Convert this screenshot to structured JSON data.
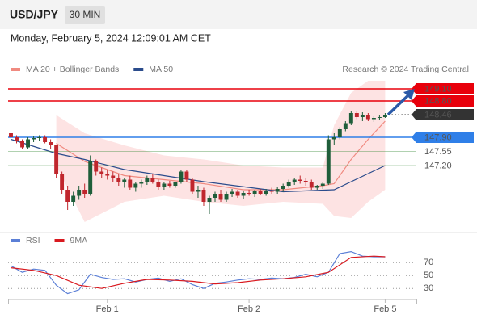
{
  "chart_data": [
    {
      "type": "candlestick",
      "title": "USD/JPY",
      "timeframe": "30 MIN",
      "subtitle": "Monday, February 5, 2024 12:09:01 AM CET",
      "source": "Research © 2024 Trading Central",
      "up_color": "#1f5e3a",
      "down_color": "#c0262d",
      "xlim": [
        -0.5,
        71.5
      ],
      "ylim": [
        145.6,
        149.5
      ],
      "xticks": [
        {
          "value": 17,
          "label": "Feb 1"
        },
        {
          "value": 42,
          "label": "Feb 2"
        },
        {
          "value": 66,
          "label": "Feb 5"
        }
      ],
      "ohlc": [
        [
          148.0,
          148.05,
          147.85,
          147.9
        ],
        [
          147.9,
          147.95,
          147.75,
          147.8
        ],
        [
          147.8,
          147.85,
          147.6,
          147.65
        ],
        [
          147.65,
          147.9,
          147.6,
          147.85
        ],
        [
          147.85,
          147.92,
          147.78,
          147.88
        ],
        [
          147.88,
          147.95,
          147.8,
          147.9
        ],
        [
          147.9,
          147.95,
          147.75,
          147.78
        ],
        [
          147.78,
          147.85,
          147.6,
          147.7
        ],
        [
          147.7,
          147.72,
          146.9,
          147.0
        ],
        [
          147.0,
          147.05,
          146.5,
          146.6
        ],
        [
          146.6,
          146.7,
          146.1,
          146.3
        ],
        [
          146.3,
          146.55,
          146.2,
          146.45
        ],
        [
          146.45,
          146.7,
          146.35,
          146.6
        ],
        [
          146.6,
          146.75,
          146.4,
          146.5
        ],
        [
          146.5,
          147.45,
          146.45,
          147.3
        ],
        [
          147.3,
          147.35,
          146.95,
          147.05
        ],
        [
          147.05,
          147.15,
          146.9,
          147.0
        ],
        [
          147.0,
          147.1,
          146.85,
          146.95
        ],
        [
          146.95,
          147.05,
          146.8,
          146.9
        ],
        [
          146.9,
          147.0,
          146.7,
          146.78
        ],
        [
          146.78,
          146.9,
          146.65,
          146.85
        ],
        [
          146.85,
          146.95,
          146.6,
          146.65
        ],
        [
          146.65,
          146.8,
          146.55,
          146.75
        ],
        [
          146.75,
          146.85,
          146.65,
          146.8
        ],
        [
          146.8,
          146.95,
          146.72,
          146.9
        ],
        [
          146.9,
          147.0,
          146.75,
          146.8
        ],
        [
          146.8,
          146.85,
          146.6,
          146.68
        ],
        [
          146.68,
          146.8,
          146.6,
          146.75
        ],
        [
          146.75,
          146.82,
          146.65,
          146.7
        ],
        [
          146.7,
          146.8,
          146.65,
          146.78
        ],
        [
          146.78,
          147.1,
          146.75,
          147.05
        ],
        [
          147.05,
          147.1,
          146.8,
          146.85
        ],
        [
          146.85,
          146.9,
          146.5,
          146.55
        ],
        [
          146.55,
          146.7,
          146.4,
          146.6
        ],
        [
          146.6,
          146.65,
          146.2,
          146.3
        ],
        [
          146.3,
          146.45,
          146.0,
          146.4
        ],
        [
          146.4,
          146.55,
          146.3,
          146.5
        ],
        [
          146.5,
          146.6,
          146.3,
          146.35
        ],
        [
          146.35,
          146.55,
          146.3,
          146.5
        ],
        [
          146.5,
          146.62,
          146.42,
          146.55
        ],
        [
          146.55,
          146.6,
          146.4,
          146.45
        ],
        [
          146.45,
          146.58,
          146.38,
          146.52
        ],
        [
          146.52,
          146.6,
          146.45,
          146.5
        ],
        [
          146.5,
          146.6,
          146.42,
          146.56
        ],
        [
          146.56,
          146.62,
          146.48,
          146.5
        ],
        [
          146.5,
          146.62,
          146.45,
          146.58
        ],
        [
          146.58,
          146.65,
          146.5,
          146.55
        ],
        [
          146.55,
          146.68,
          146.5,
          146.62
        ],
        [
          146.62,
          146.75,
          146.55,
          146.7
        ],
        [
          146.7,
          146.85,
          146.65,
          146.8
        ],
        [
          146.8,
          146.9,
          146.72,
          146.85
        ],
        [
          146.85,
          146.95,
          146.75,
          146.82
        ],
        [
          146.82,
          146.9,
          146.7,
          146.78
        ],
        [
          146.78,
          146.85,
          146.6,
          146.65
        ],
        [
          146.65,
          146.72,
          146.6,
          146.7
        ],
        [
          146.7,
          146.8,
          146.62,
          146.75
        ],
        [
          146.75,
          147.95,
          146.72,
          147.85
        ],
        [
          147.85,
          148.0,
          147.7,
          147.9
        ],
        [
          147.9,
          148.15,
          147.85,
          148.1
        ],
        [
          148.1,
          148.3,
          148.05,
          148.25
        ],
        [
          148.25,
          148.55,
          148.2,
          148.5
        ],
        [
          148.5,
          148.55,
          148.35,
          148.4
        ],
        [
          148.4,
          148.52,
          148.3,
          148.45
        ],
        [
          148.45,
          148.5,
          148.3,
          148.35
        ],
        [
          148.35,
          148.42,
          148.28,
          148.38
        ],
        [
          148.38,
          148.45,
          148.32,
          148.4
        ],
        [
          148.4,
          148.5,
          148.38,
          148.46
        ]
      ],
      "series": [
        {
          "name": "MA 20 + Bollinger Bands",
          "color": "#f08a80",
          "band_color": "#fde3e3",
          "x": [
            8,
            13,
            20,
            27,
            34,
            41,
            48,
            55,
            57,
            60,
            63,
            66
          ],
          "values": [
            147.75,
            147.3,
            146.95,
            146.85,
            146.75,
            146.6,
            146.6,
            146.7,
            146.75,
            147.35,
            147.85,
            148.3
          ],
          "upper": [
            148.45,
            148.0,
            147.7,
            147.45,
            147.35,
            147.2,
            147.15,
            147.15,
            148.2,
            149.0,
            149.3,
            149.3
          ],
          "lower": [
            147.2,
            145.8,
            146.3,
            146.45,
            146.3,
            146.2,
            146.3,
            146.25,
            145.95,
            145.9,
            146.3,
            146.6
          ]
        },
        {
          "name": "MA 50",
          "color": "#2b4c8c",
          "x": [
            0,
            8,
            13,
            20,
            34,
            48,
            57,
            66
          ],
          "values": [
            147.85,
            147.5,
            147.35,
            147.1,
            146.8,
            146.55,
            146.6,
            147.2
          ]
        }
      ],
      "levels": [
        {
          "value": 149.1,
          "label": "149.10",
          "color": "#e8000b",
          "box": true,
          "line": "solid"
        },
        {
          "value": 148.8,
          "label": "148.80",
          "color": "#e8000b",
          "box": true,
          "line": "solid"
        },
        {
          "value": 148.46,
          "label": "148.46",
          "color": "#333333",
          "box": true,
          "line": "dotted"
        },
        {
          "value": 147.9,
          "label": "147.90",
          "color": "#2f7fe8",
          "box": true,
          "line": "solid"
        },
        {
          "value": 147.55,
          "label": "147.55",
          "color": "#3f8f3f",
          "box": false,
          "line": "thin"
        },
        {
          "value": 147.2,
          "label": "147.20",
          "color": "#3f8f3f",
          "box": false,
          "line": "thin"
        }
      ]
    },
    {
      "type": "line",
      "xlim": [
        -0.5,
        71.5
      ],
      "ylim": [
        14,
        89
      ],
      "yticks": [
        30,
        50,
        70
      ],
      "grid": "dotted",
      "series": [
        {
          "name": "RSI",
          "color": "#5b7fd6",
          "x": [
            0,
            2,
            4,
            6,
            8,
            10,
            12,
            14,
            16,
            18,
            20,
            22,
            24,
            26,
            28,
            30,
            32,
            34,
            36,
            38,
            40,
            42,
            44,
            46,
            48,
            50,
            52,
            54,
            56,
            58,
            60,
            62,
            64,
            66
          ],
          "values": [
            65,
            55,
            60,
            58,
            35,
            22,
            28,
            52,
            47,
            44,
            45,
            40,
            44,
            46,
            41,
            45,
            36,
            30,
            38,
            40,
            43,
            45,
            44,
            46,
            45,
            47,
            52,
            48,
            55,
            84,
            87,
            80,
            79,
            79
          ]
        },
        {
          "name": "9MA",
          "color": "#d9191f",
          "x": [
            0,
            4,
            8,
            12,
            16,
            20,
            24,
            28,
            32,
            36,
            40,
            44,
            48,
            52,
            56,
            60,
            64,
            66
          ],
          "values": [
            62,
            58,
            50,
            35,
            30,
            38,
            44,
            43,
            41,
            37,
            39,
            43,
            45,
            48,
            55,
            78,
            80,
            79
          ]
        }
      ]
    }
  ]
}
